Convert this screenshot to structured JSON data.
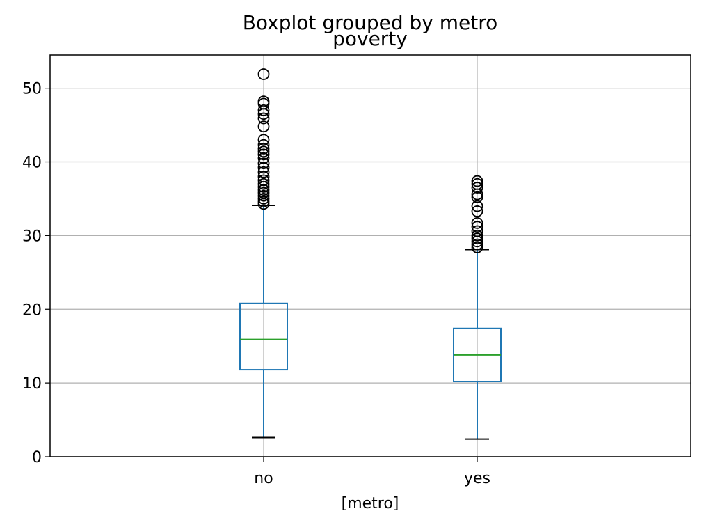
{
  "chart_data": {
    "type": "box",
    "suptitle": "Boxplot grouped by metro",
    "title": "poverty",
    "xlabel": "[metro]",
    "ylabel": "",
    "ylim": [
      0,
      54.5
    ],
    "yticks": [
      0,
      10,
      20,
      30,
      40,
      50
    ],
    "categories": [
      "no",
      "yes"
    ],
    "grid": true,
    "colors": {
      "box": "#1f77b4",
      "median": "#2ca02c",
      "whisker": "#1f77b4",
      "cap": "#000000",
      "flier": "#000000",
      "grid": "#b0b0b0"
    },
    "series": [
      {
        "category": "no",
        "whisker_low": 2.6,
        "q1": 11.8,
        "median": 15.9,
        "q3": 20.8,
        "whisker_high": 34.1,
        "outliers": [
          34.3,
          34.6,
          35.0,
          35.4,
          35.8,
          36.2,
          36.6,
          37.0,
          37.5,
          38.0,
          38.6,
          39.2,
          39.8,
          40.5,
          41.0,
          41.4,
          41.8,
          42.3,
          43.0,
          44.8,
          45.9,
          46.5,
          47.0,
          47.9,
          48.2,
          51.9
        ]
      },
      {
        "category": "yes",
        "whisker_low": 2.4,
        "q1": 10.2,
        "median": 13.8,
        "q3": 17.4,
        "whisker_high": 28.1,
        "outliers": [
          28.4,
          28.8,
          29.2,
          29.6,
          30.0,
          30.6,
          31.2,
          31.7,
          33.3,
          34.0,
          35.2,
          35.6,
          36.5,
          37.0,
          37.4
        ]
      }
    ]
  }
}
